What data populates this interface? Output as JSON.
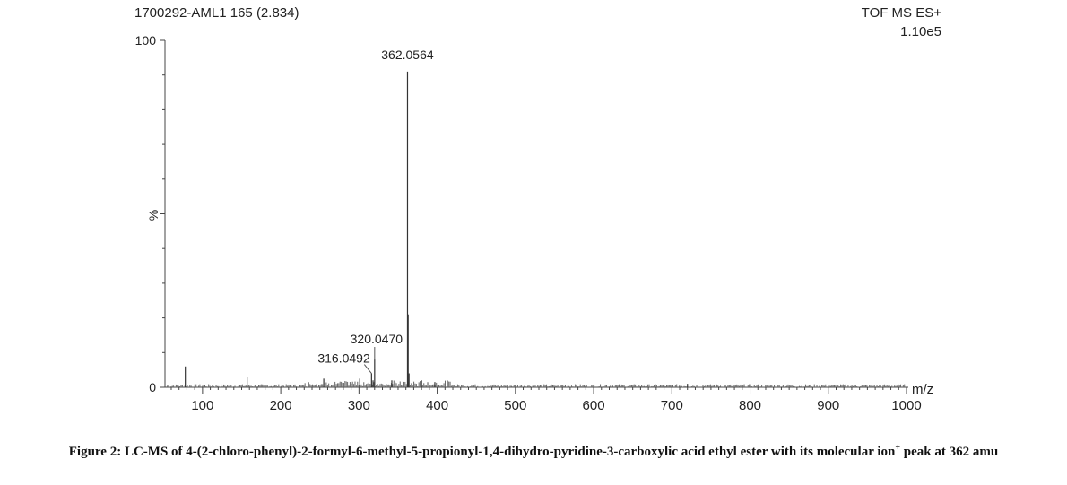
{
  "header": {
    "sample_label": "1700292-AML1 165 (2.834)",
    "mode_label": "TOF MS ES+",
    "intensity_label": "1.10e5"
  },
  "caption": {
    "text_before": "Figure 2: LC-MS of 4-(2-chloro-phenyl)-2-formyl-6-methyl-5-propionyl-1,4-dihydro-pyridine-3-carboxylic acid ethyl ester with its molecular ion",
    "superscript": "+",
    "text_after": " peak at 362 amu"
  },
  "chart_data": {
    "type": "bar",
    "xlabel": "m/z",
    "ylabel": "%",
    "xlim": [
      52,
      1000
    ],
    "ylim": [
      0,
      100
    ],
    "x_ticks": [
      100,
      200,
      300,
      400,
      500,
      600,
      700,
      800,
      900,
      1000
    ],
    "y_ticks": [
      0,
      100
    ],
    "peaks": [
      {
        "mz": 362.0564,
        "intensity": 91,
        "label": "362.0564"
      },
      {
        "mz": 320.047,
        "intensity": 8,
        "label": "320.0470"
      },
      {
        "mz": 316.0492,
        "intensity": 4,
        "label": "316.0492"
      },
      {
        "mz": 362.9,
        "intensity": 21,
        "label": ""
      },
      {
        "mz": 364.0,
        "intensity": 4,
        "label": ""
      },
      {
        "mz": 78,
        "intensity": 6,
        "label": ""
      },
      {
        "mz": 157,
        "intensity": 3,
        "label": ""
      },
      {
        "mz": 255,
        "intensity": 2.5,
        "label": ""
      },
      {
        "mz": 301,
        "intensity": 2.5,
        "label": ""
      },
      {
        "mz": 318,
        "intensity": 2,
        "label": ""
      },
      {
        "mz": 342,
        "intensity": 2,
        "label": ""
      },
      {
        "mz": 380,
        "intensity": 2,
        "label": ""
      },
      {
        "mz": 397,
        "intensity": 1.5,
        "label": ""
      },
      {
        "mz": 720,
        "intensity": 1,
        "label": ""
      }
    ]
  }
}
